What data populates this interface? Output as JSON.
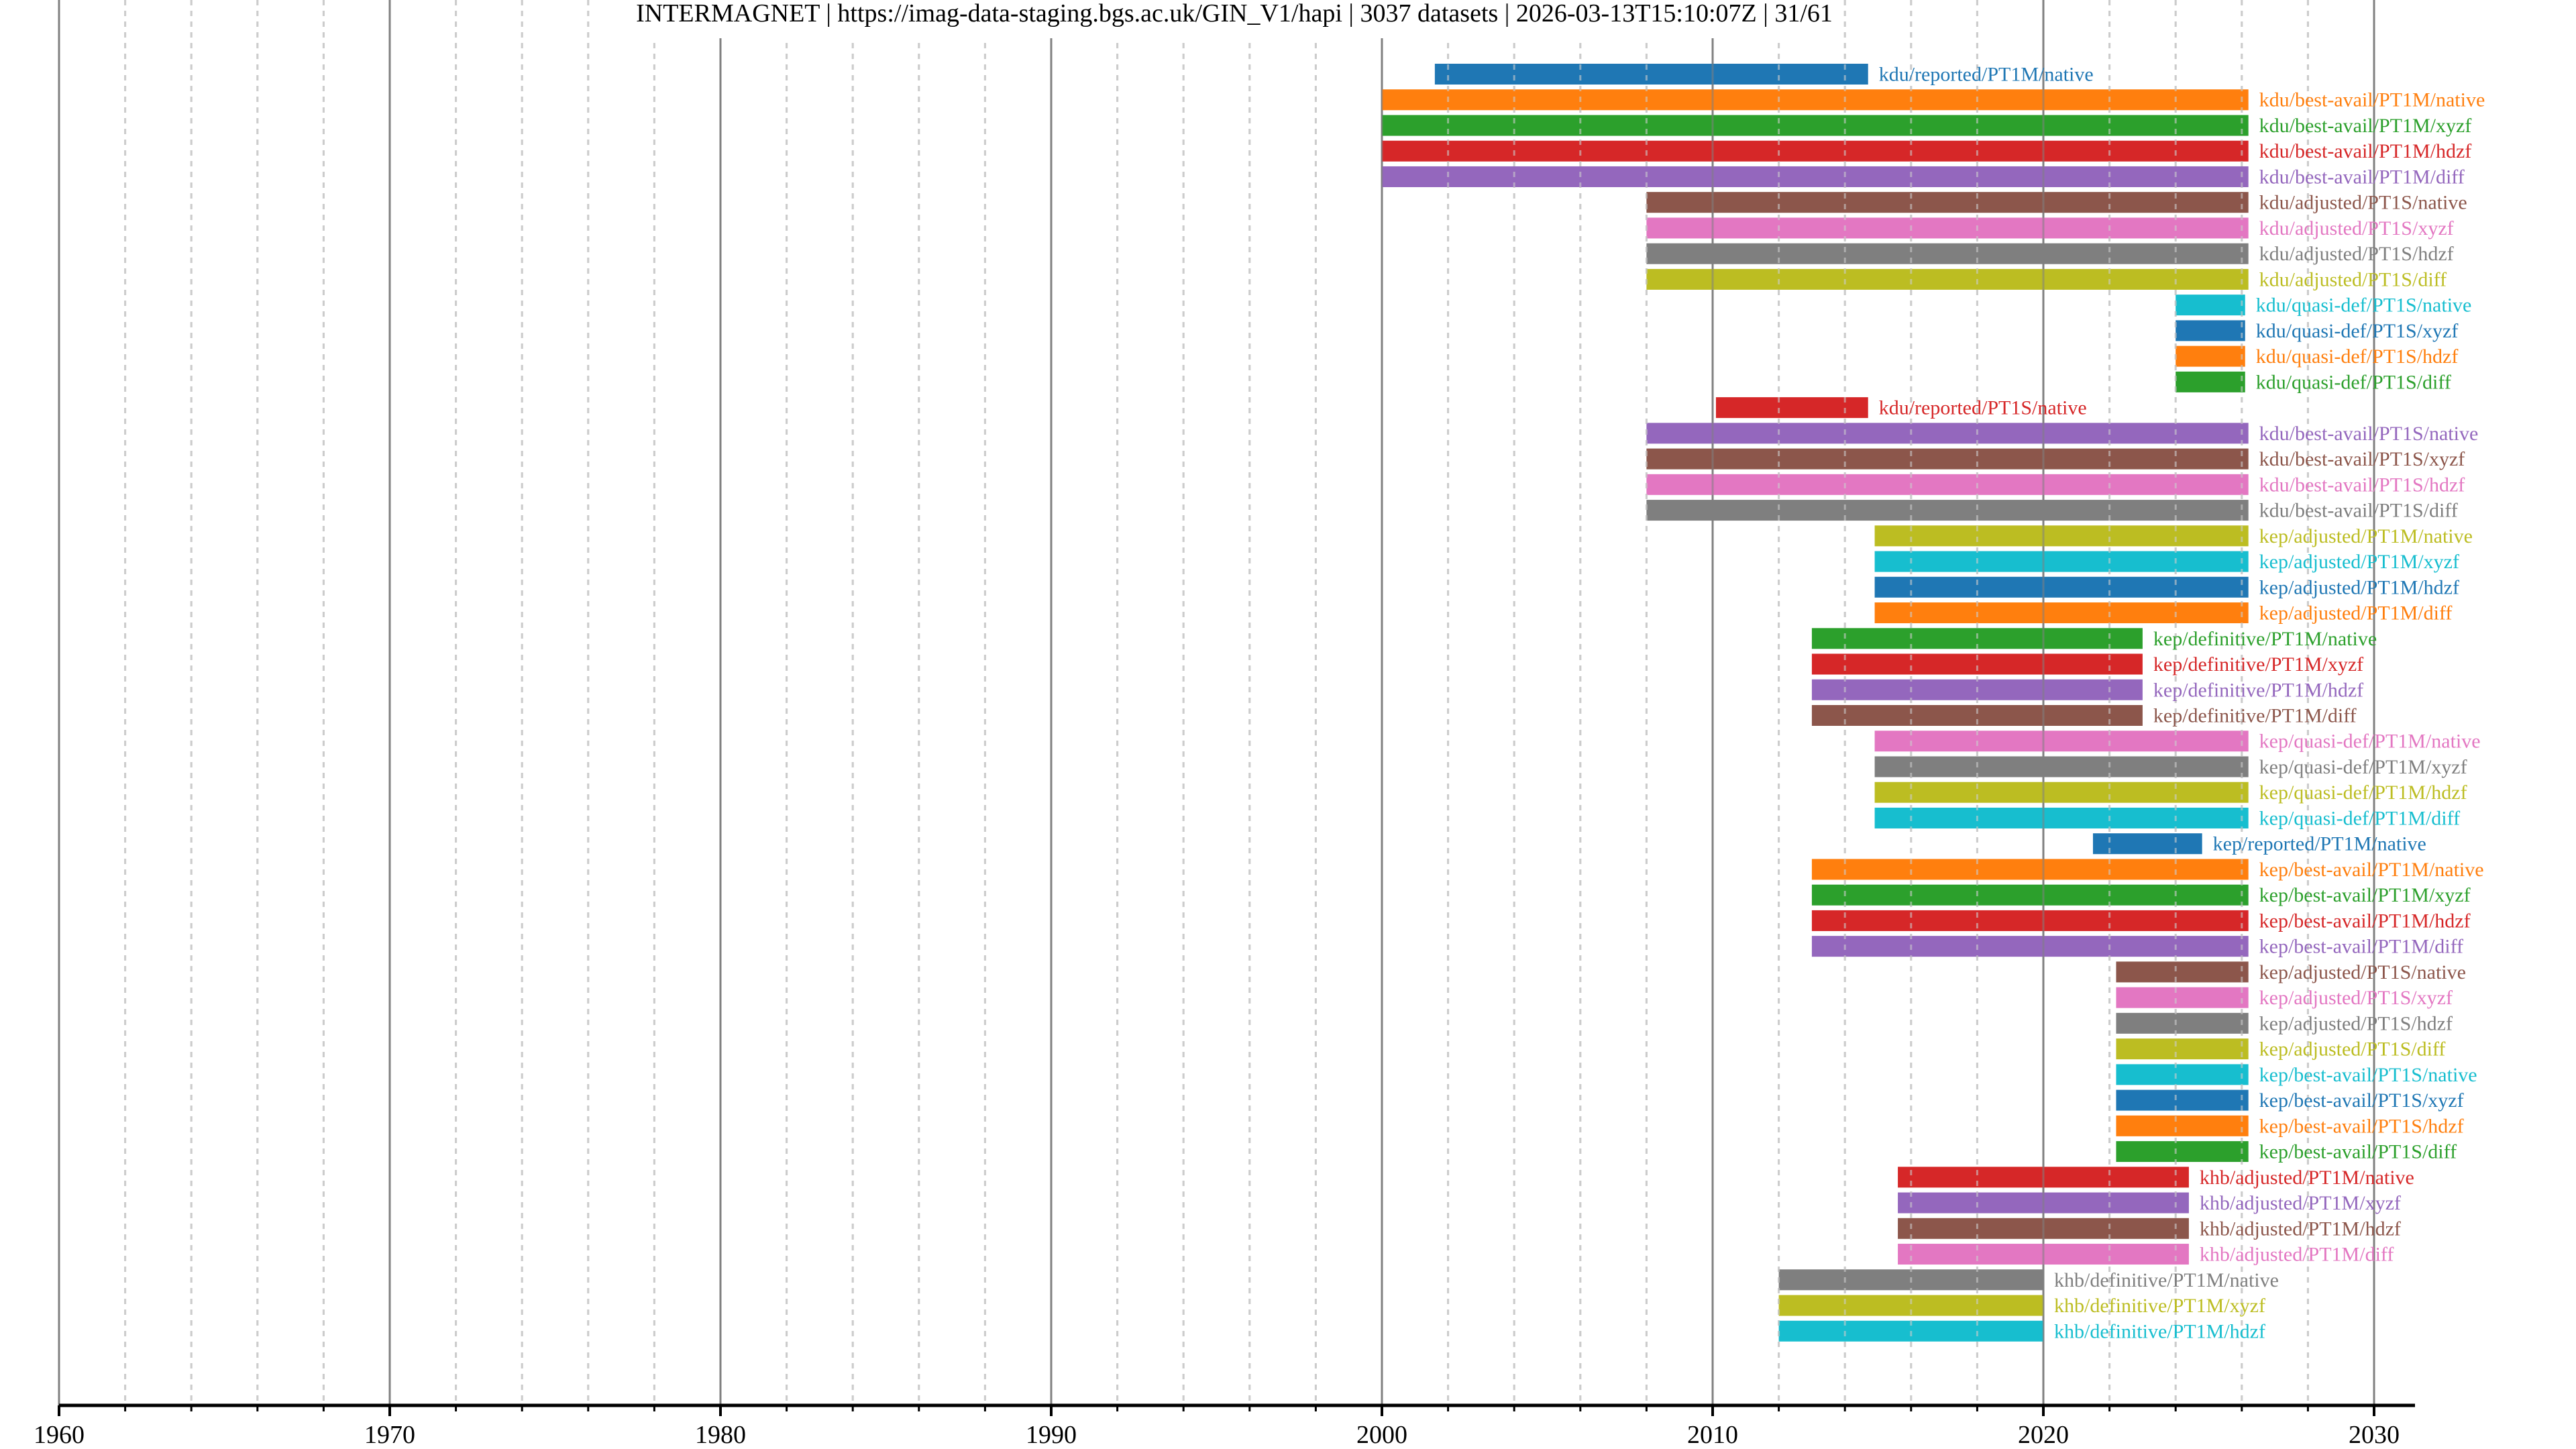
{
  "chart_data": {
    "type": "bar",
    "orientation": "horizontal-timeline",
    "title": "INTERMAGNET | https://imag-data-staging.bgs.ac.uk/GIN_V1/hapi | 3037 datasets | 2026-03-13T15:10:07Z | 31/61",
    "xlabel": "",
    "ylabel": "",
    "xlim": [
      1960,
      2031.2
    ],
    "x_major_ticks": [
      1960,
      1970,
      1980,
      1990,
      2000,
      2010,
      2020,
      2030
    ],
    "x_tick_labels": [
      "1960",
      "1970",
      "1980",
      "1990",
      "2000",
      "2010",
      "2020",
      "2030"
    ],
    "x_minor_step": 2,
    "grid": true,
    "legend": "none",
    "colors": [
      "#1f77b4",
      "#ff7f0e",
      "#2ca02c",
      "#d62728",
      "#9467bd",
      "#8c564b",
      "#e377c2",
      "#7f7f7f",
      "#bcbd22",
      "#17becf"
    ],
    "series": [
      {
        "name": "kdu/reported/PT1M/native",
        "start": 2001.6,
        "end": 2014.7
      },
      {
        "name": "kdu/best-avail/PT1M/native",
        "start": 2000.0,
        "end": 2026.2
      },
      {
        "name": "kdu/best-avail/PT1M/xyzf",
        "start": 2000.0,
        "end": 2026.2
      },
      {
        "name": "kdu/best-avail/PT1M/hdzf",
        "start": 2000.0,
        "end": 2026.2
      },
      {
        "name": "kdu/best-avail/PT1M/diff",
        "start": 2000.0,
        "end": 2026.2
      },
      {
        "name": "kdu/adjusted/PT1S/native",
        "start": 2008.0,
        "end": 2026.2
      },
      {
        "name": "kdu/adjusted/PT1S/xyzf",
        "start": 2008.0,
        "end": 2026.2
      },
      {
        "name": "kdu/adjusted/PT1S/hdzf",
        "start": 2008.0,
        "end": 2026.2
      },
      {
        "name": "kdu/adjusted/PT1S/diff",
        "start": 2008.0,
        "end": 2026.2
      },
      {
        "name": "kdu/quasi-def/PT1S/native",
        "start": 2024.0,
        "end": 2026.1
      },
      {
        "name": "kdu/quasi-def/PT1S/xyzf",
        "start": 2024.0,
        "end": 2026.1
      },
      {
        "name": "kdu/quasi-def/PT1S/hdzf",
        "start": 2024.0,
        "end": 2026.1
      },
      {
        "name": "kdu/quasi-def/PT1S/diff",
        "start": 2024.0,
        "end": 2026.1
      },
      {
        "name": "kdu/reported/PT1S/native",
        "start": 2010.1,
        "end": 2014.7
      },
      {
        "name": "kdu/best-avail/PT1S/native",
        "start": 2008.0,
        "end": 2026.2
      },
      {
        "name": "kdu/best-avail/PT1S/xyzf",
        "start": 2008.0,
        "end": 2026.2
      },
      {
        "name": "kdu/best-avail/PT1S/hdzf",
        "start": 2008.0,
        "end": 2026.2
      },
      {
        "name": "kdu/best-avail/PT1S/diff",
        "start": 2008.0,
        "end": 2026.2
      },
      {
        "name": "kep/adjusted/PT1M/native",
        "start": 2014.9,
        "end": 2026.2
      },
      {
        "name": "kep/adjusted/PT1M/xyzf",
        "start": 2014.9,
        "end": 2026.2
      },
      {
        "name": "kep/adjusted/PT1M/hdzf",
        "start": 2014.9,
        "end": 2026.2
      },
      {
        "name": "kep/adjusted/PT1M/diff",
        "start": 2014.9,
        "end": 2026.2
      },
      {
        "name": "kep/definitive/PT1M/native",
        "start": 2013.0,
        "end": 2023.0
      },
      {
        "name": "kep/definitive/PT1M/xyzf",
        "start": 2013.0,
        "end": 2023.0
      },
      {
        "name": "kep/definitive/PT1M/hdzf",
        "start": 2013.0,
        "end": 2023.0
      },
      {
        "name": "kep/definitive/PT1M/diff",
        "start": 2013.0,
        "end": 2023.0
      },
      {
        "name": "kep/quasi-def/PT1M/native",
        "start": 2014.9,
        "end": 2026.2
      },
      {
        "name": "kep/quasi-def/PT1M/xyzf",
        "start": 2014.9,
        "end": 2026.2
      },
      {
        "name": "kep/quasi-def/PT1M/hdzf",
        "start": 2014.9,
        "end": 2026.2
      },
      {
        "name": "kep/quasi-def/PT1M/diff",
        "start": 2014.9,
        "end": 2026.2
      },
      {
        "name": "kep/reported/PT1M/native",
        "start": 2021.5,
        "end": 2024.8
      },
      {
        "name": "kep/best-avail/PT1M/native",
        "start": 2013.0,
        "end": 2026.2
      },
      {
        "name": "kep/best-avail/PT1M/xyzf",
        "start": 2013.0,
        "end": 2026.2
      },
      {
        "name": "kep/best-avail/PT1M/hdzf",
        "start": 2013.0,
        "end": 2026.2
      },
      {
        "name": "kep/best-avail/PT1M/diff",
        "start": 2013.0,
        "end": 2026.2
      },
      {
        "name": "kep/adjusted/PT1S/native",
        "start": 2022.2,
        "end": 2026.2
      },
      {
        "name": "kep/adjusted/PT1S/xyzf",
        "start": 2022.2,
        "end": 2026.2
      },
      {
        "name": "kep/adjusted/PT1S/hdzf",
        "start": 2022.2,
        "end": 2026.2
      },
      {
        "name": "kep/adjusted/PT1S/diff",
        "start": 2022.2,
        "end": 2026.2
      },
      {
        "name": "kep/best-avail/PT1S/native",
        "start": 2022.2,
        "end": 2026.2
      },
      {
        "name": "kep/best-avail/PT1S/xyzf",
        "start": 2022.2,
        "end": 2026.2
      },
      {
        "name": "kep/best-avail/PT1S/hdzf",
        "start": 2022.2,
        "end": 2026.2
      },
      {
        "name": "kep/best-avail/PT1S/diff",
        "start": 2022.2,
        "end": 2026.2
      },
      {
        "name": "khb/adjusted/PT1M/native",
        "start": 2015.6,
        "end": 2024.4
      },
      {
        "name": "khb/adjusted/PT1M/xyzf",
        "start": 2015.6,
        "end": 2024.4
      },
      {
        "name": "khb/adjusted/PT1M/hdzf",
        "start": 2015.6,
        "end": 2024.4
      },
      {
        "name": "khb/adjusted/PT1M/diff",
        "start": 2015.6,
        "end": 2024.4
      },
      {
        "name": "khb/definitive/PT1M/native",
        "start": 2012.0,
        "end": 2020.0
      },
      {
        "name": "khb/definitive/PT1M/xyzf",
        "start": 2012.0,
        "end": 2020.0
      },
      {
        "name": "khb/definitive/PT1M/hdzf",
        "start": 2012.0,
        "end": 2020.0
      }
    ]
  }
}
